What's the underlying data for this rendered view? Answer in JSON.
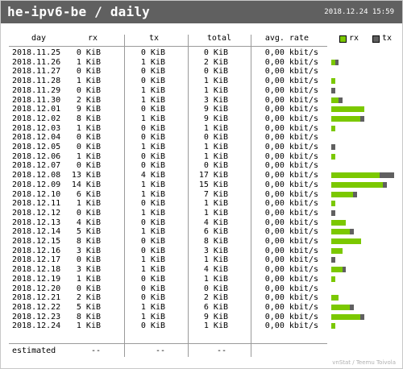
{
  "header": {
    "title": "he-ipv6-be / daily",
    "date": "2018.12.24 15:59"
  },
  "columns": {
    "day": "day",
    "rx": "rx",
    "tx": "tx",
    "total": "total",
    "rate": "avg. rate"
  },
  "legend": {
    "rx": "rx",
    "tx": "tx",
    "rx_color": "#7bc800",
    "tx_color": "#606060"
  },
  "rows": [
    {
      "day": "2018.11.25",
      "rx": "0 KiB",
      "tx": "0 KiB",
      "total": "0 KiB",
      "rate": "0,00 kbit/s",
      "bar_rx": 0,
      "bar_tx": 0
    },
    {
      "day": "2018.11.26",
      "rx": "1 KiB",
      "tx": "1 KiB",
      "total": "2 KiB",
      "rate": "0,00 kbit/s",
      "bar_rx": 1,
      "bar_tx": 1
    },
    {
      "day": "2018.11.27",
      "rx": "0 KiB",
      "tx": "0 KiB",
      "total": "0 KiB",
      "rate": "0,00 kbit/s",
      "bar_rx": 0,
      "bar_tx": 0
    },
    {
      "day": "2018.11.28",
      "rx": "1 KiB",
      "tx": "0 KiB",
      "total": "1 KiB",
      "rate": "0,00 kbit/s",
      "bar_rx": 1,
      "bar_tx": 0
    },
    {
      "day": "2018.11.29",
      "rx": "0 KiB",
      "tx": "1 KiB",
      "total": "1 KiB",
      "rate": "0,00 kbit/s",
      "bar_rx": 0,
      "bar_tx": 1
    },
    {
      "day": "2018.11.30",
      "rx": "2 KiB",
      "tx": "1 KiB",
      "total": "3 KiB",
      "rate": "0,00 kbit/s",
      "bar_rx": 2,
      "bar_tx": 1
    },
    {
      "day": "2018.12.01",
      "rx": "9 KiB",
      "tx": "0 KiB",
      "total": "9 KiB",
      "rate": "0,00 kbit/s",
      "bar_rx": 9,
      "bar_tx": 0
    },
    {
      "day": "2018.12.02",
      "rx": "8 KiB",
      "tx": "1 KiB",
      "total": "9 KiB",
      "rate": "0,00 kbit/s",
      "bar_rx": 8,
      "bar_tx": 1
    },
    {
      "day": "2018.12.03",
      "rx": "1 KiB",
      "tx": "0 KiB",
      "total": "1 KiB",
      "rate": "0,00 kbit/s",
      "bar_rx": 1,
      "bar_tx": 0
    },
    {
      "day": "2018.12.04",
      "rx": "0 KiB",
      "tx": "0 KiB",
      "total": "0 KiB",
      "rate": "0,00 kbit/s",
      "bar_rx": 0,
      "bar_tx": 0
    },
    {
      "day": "2018.12.05",
      "rx": "0 KiB",
      "tx": "1 KiB",
      "total": "1 KiB",
      "rate": "0,00 kbit/s",
      "bar_rx": 0,
      "bar_tx": 1
    },
    {
      "day": "2018.12.06",
      "rx": "1 KiB",
      "tx": "0 KiB",
      "total": "1 KiB",
      "rate": "0,00 kbit/s",
      "bar_rx": 1,
      "bar_tx": 0
    },
    {
      "day": "2018.12.07",
      "rx": "0 KiB",
      "tx": "0 KiB",
      "total": "0 KiB",
      "rate": "0,00 kbit/s",
      "bar_rx": 0,
      "bar_tx": 0
    },
    {
      "day": "2018.12.08",
      "rx": "13 KiB",
      "tx": "4 KiB",
      "total": "17 KiB",
      "rate": "0,00 kbit/s",
      "bar_rx": 13,
      "bar_tx": 4
    },
    {
      "day": "2018.12.09",
      "rx": "14 KiB",
      "tx": "1 KiB",
      "total": "15 KiB",
      "rate": "0,00 kbit/s",
      "bar_rx": 14,
      "bar_tx": 1
    },
    {
      "day": "2018.12.10",
      "rx": "6 KiB",
      "tx": "1 KiB",
      "total": "7 KiB",
      "rate": "0,00 kbit/s",
      "bar_rx": 6,
      "bar_tx": 1
    },
    {
      "day": "2018.12.11",
      "rx": "1 KiB",
      "tx": "0 KiB",
      "total": "1 KiB",
      "rate": "0,00 kbit/s",
      "bar_rx": 1,
      "bar_tx": 0
    },
    {
      "day": "2018.12.12",
      "rx": "0 KiB",
      "tx": "1 KiB",
      "total": "1 KiB",
      "rate": "0,00 kbit/s",
      "bar_rx": 0,
      "bar_tx": 1
    },
    {
      "day": "2018.12.13",
      "rx": "4 KiB",
      "tx": "0 KiB",
      "total": "4 KiB",
      "rate": "0,00 kbit/s",
      "bar_rx": 4,
      "bar_tx": 0
    },
    {
      "day": "2018.12.14",
      "rx": "5 KiB",
      "tx": "1 KiB",
      "total": "6 KiB",
      "rate": "0,00 kbit/s",
      "bar_rx": 5,
      "bar_tx": 1
    },
    {
      "day": "2018.12.15",
      "rx": "8 KiB",
      "tx": "0 KiB",
      "total": "8 KiB",
      "rate": "0,00 kbit/s",
      "bar_rx": 8,
      "bar_tx": 0
    },
    {
      "day": "2018.12.16",
      "rx": "3 KiB",
      "tx": "0 KiB",
      "total": "3 KiB",
      "rate": "0,00 kbit/s",
      "bar_rx": 3,
      "bar_tx": 0
    },
    {
      "day": "2018.12.17",
      "rx": "0 KiB",
      "tx": "1 KiB",
      "total": "1 KiB",
      "rate": "0,00 kbit/s",
      "bar_rx": 0,
      "bar_tx": 1
    },
    {
      "day": "2018.12.18",
      "rx": "3 KiB",
      "tx": "1 KiB",
      "total": "4 KiB",
      "rate": "0,00 kbit/s",
      "bar_rx": 3,
      "bar_tx": 1
    },
    {
      "day": "2018.12.19",
      "rx": "1 KiB",
      "tx": "0 KiB",
      "total": "1 KiB",
      "rate": "0,00 kbit/s",
      "bar_rx": 1,
      "bar_tx": 0
    },
    {
      "day": "2018.12.20",
      "rx": "0 KiB",
      "tx": "0 KiB",
      "total": "0 KiB",
      "rate": "0,00 kbit/s",
      "bar_rx": 0,
      "bar_tx": 0
    },
    {
      "day": "2018.12.21",
      "rx": "2 KiB",
      "tx": "0 KiB",
      "total": "2 KiB",
      "rate": "0,00 kbit/s",
      "bar_rx": 2,
      "bar_tx": 0
    },
    {
      "day": "2018.12.22",
      "rx": "5 KiB",
      "tx": "1 KiB",
      "total": "6 KiB",
      "rate": "0,00 kbit/s",
      "bar_rx": 5,
      "bar_tx": 1
    },
    {
      "day": "2018.12.23",
      "rx": "8 KiB",
      "tx": "1 KiB",
      "total": "9 KiB",
      "rate": "0,00 kbit/s",
      "bar_rx": 8,
      "bar_tx": 1
    },
    {
      "day": "2018.12.24",
      "rx": "1 KiB",
      "tx": "0 KiB",
      "total": "1 KiB",
      "rate": "0,00 kbit/s",
      "bar_rx": 1,
      "bar_tx": 0
    }
  ],
  "estimated": {
    "label": "estimated",
    "rx": "--",
    "tx": "--",
    "total": "--"
  },
  "footer": "vnStat / Teemu Toivola"
}
